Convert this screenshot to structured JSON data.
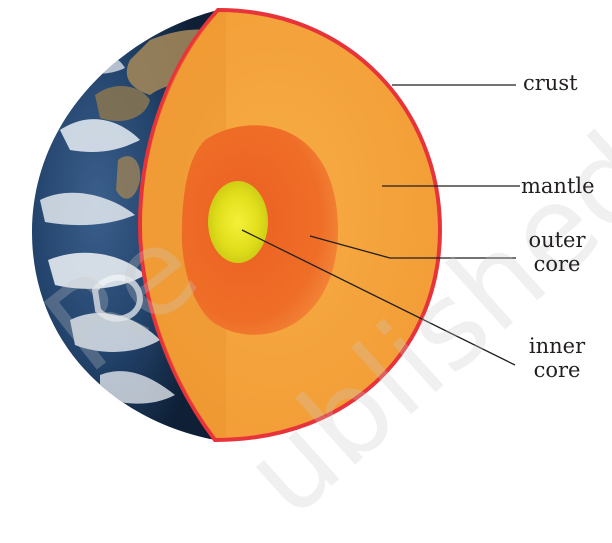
{
  "labels": {
    "crust": "crust",
    "mantle": "mantle",
    "outer_core_line1": "outer",
    "outer_core_line2": "core",
    "inner_core_line1": "inner",
    "inner_core_line2": "core"
  },
  "watermark": {
    "part1": "Re",
    "part2": "ublished"
  },
  "colors": {
    "crust": "#e8333a",
    "mantle": "#f4a23c",
    "outer_core": "#ef6d27",
    "inner_core": "#e4e31a",
    "ocean": "#1d3a5c"
  }
}
